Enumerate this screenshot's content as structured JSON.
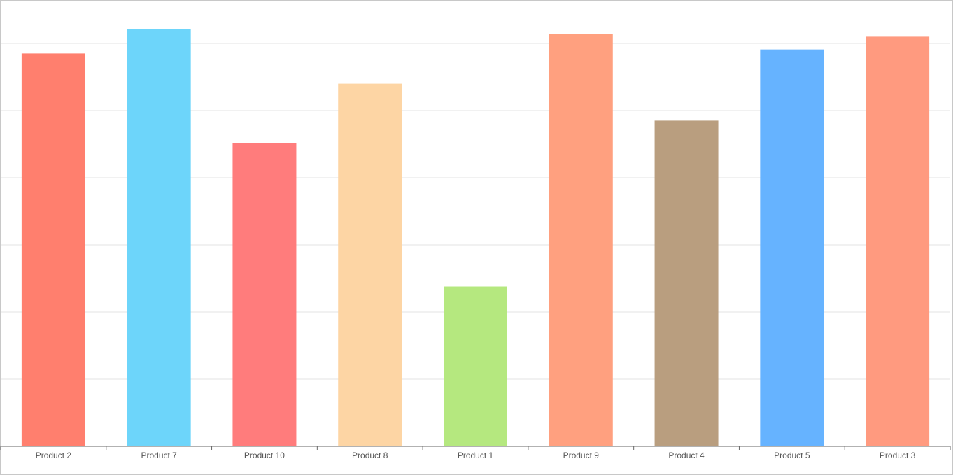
{
  "chart_data": {
    "type": "bar",
    "categories": [
      "Product 2",
      "Product 7",
      "Product 10",
      "Product 8",
      "Product 1",
      "Product 9",
      "Product 4",
      "Product 5",
      "Product 3"
    ],
    "values": [
      58.5,
      62.1,
      45.2,
      54.0,
      23.8,
      61.4,
      48.5,
      59.1,
      61.0
    ],
    "colors": [
      "#ff7f6e",
      "#6dd5fa",
      "#ff7c7c",
      "#fdd5a4",
      "#b5e87f",
      "#ffa07f",
      "#b99e7f",
      "#66b3ff",
      "#ff9a7f"
    ],
    "ylim": [
      0,
      70
    ],
    "y_gridlines": [
      0,
      10,
      20,
      30,
      40,
      50,
      60
    ],
    "grid": true,
    "legend": "none",
    "title": "",
    "xlabel": "",
    "ylabel": ""
  }
}
